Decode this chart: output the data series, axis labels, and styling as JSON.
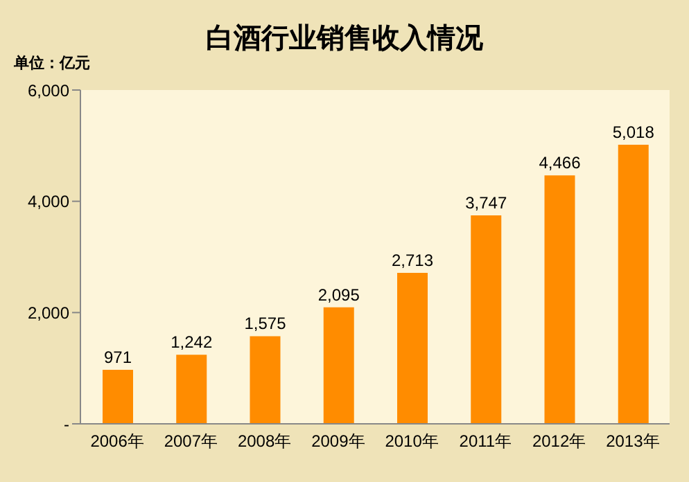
{
  "chart_data": {
    "type": "bar",
    "title": "白酒行业销售收入情况",
    "ylabel": "单位：亿元",
    "categories": [
      "2006年",
      "2007年",
      "2008年",
      "2009年",
      "2010年",
      "2011年",
      "2012年",
      "2013年"
    ],
    "values": [
      971,
      1242,
      1575,
      2095,
      2713,
      3747,
      4466,
      5018
    ],
    "value_labels": [
      "971",
      "1,242",
      "1,575",
      "2,095",
      "2,713",
      "3,747",
      "4,466",
      "5,018"
    ],
    "color": "#ff8c00",
    "ylim": [
      0,
      6000
    ],
    "yticks": [
      {
        "value": 0,
        "label": "-"
      },
      {
        "value": 2000,
        "label": "2,000"
      },
      {
        "value": 4000,
        "label": "4,000"
      },
      {
        "value": 6000,
        "label": "6,000"
      }
    ]
  }
}
